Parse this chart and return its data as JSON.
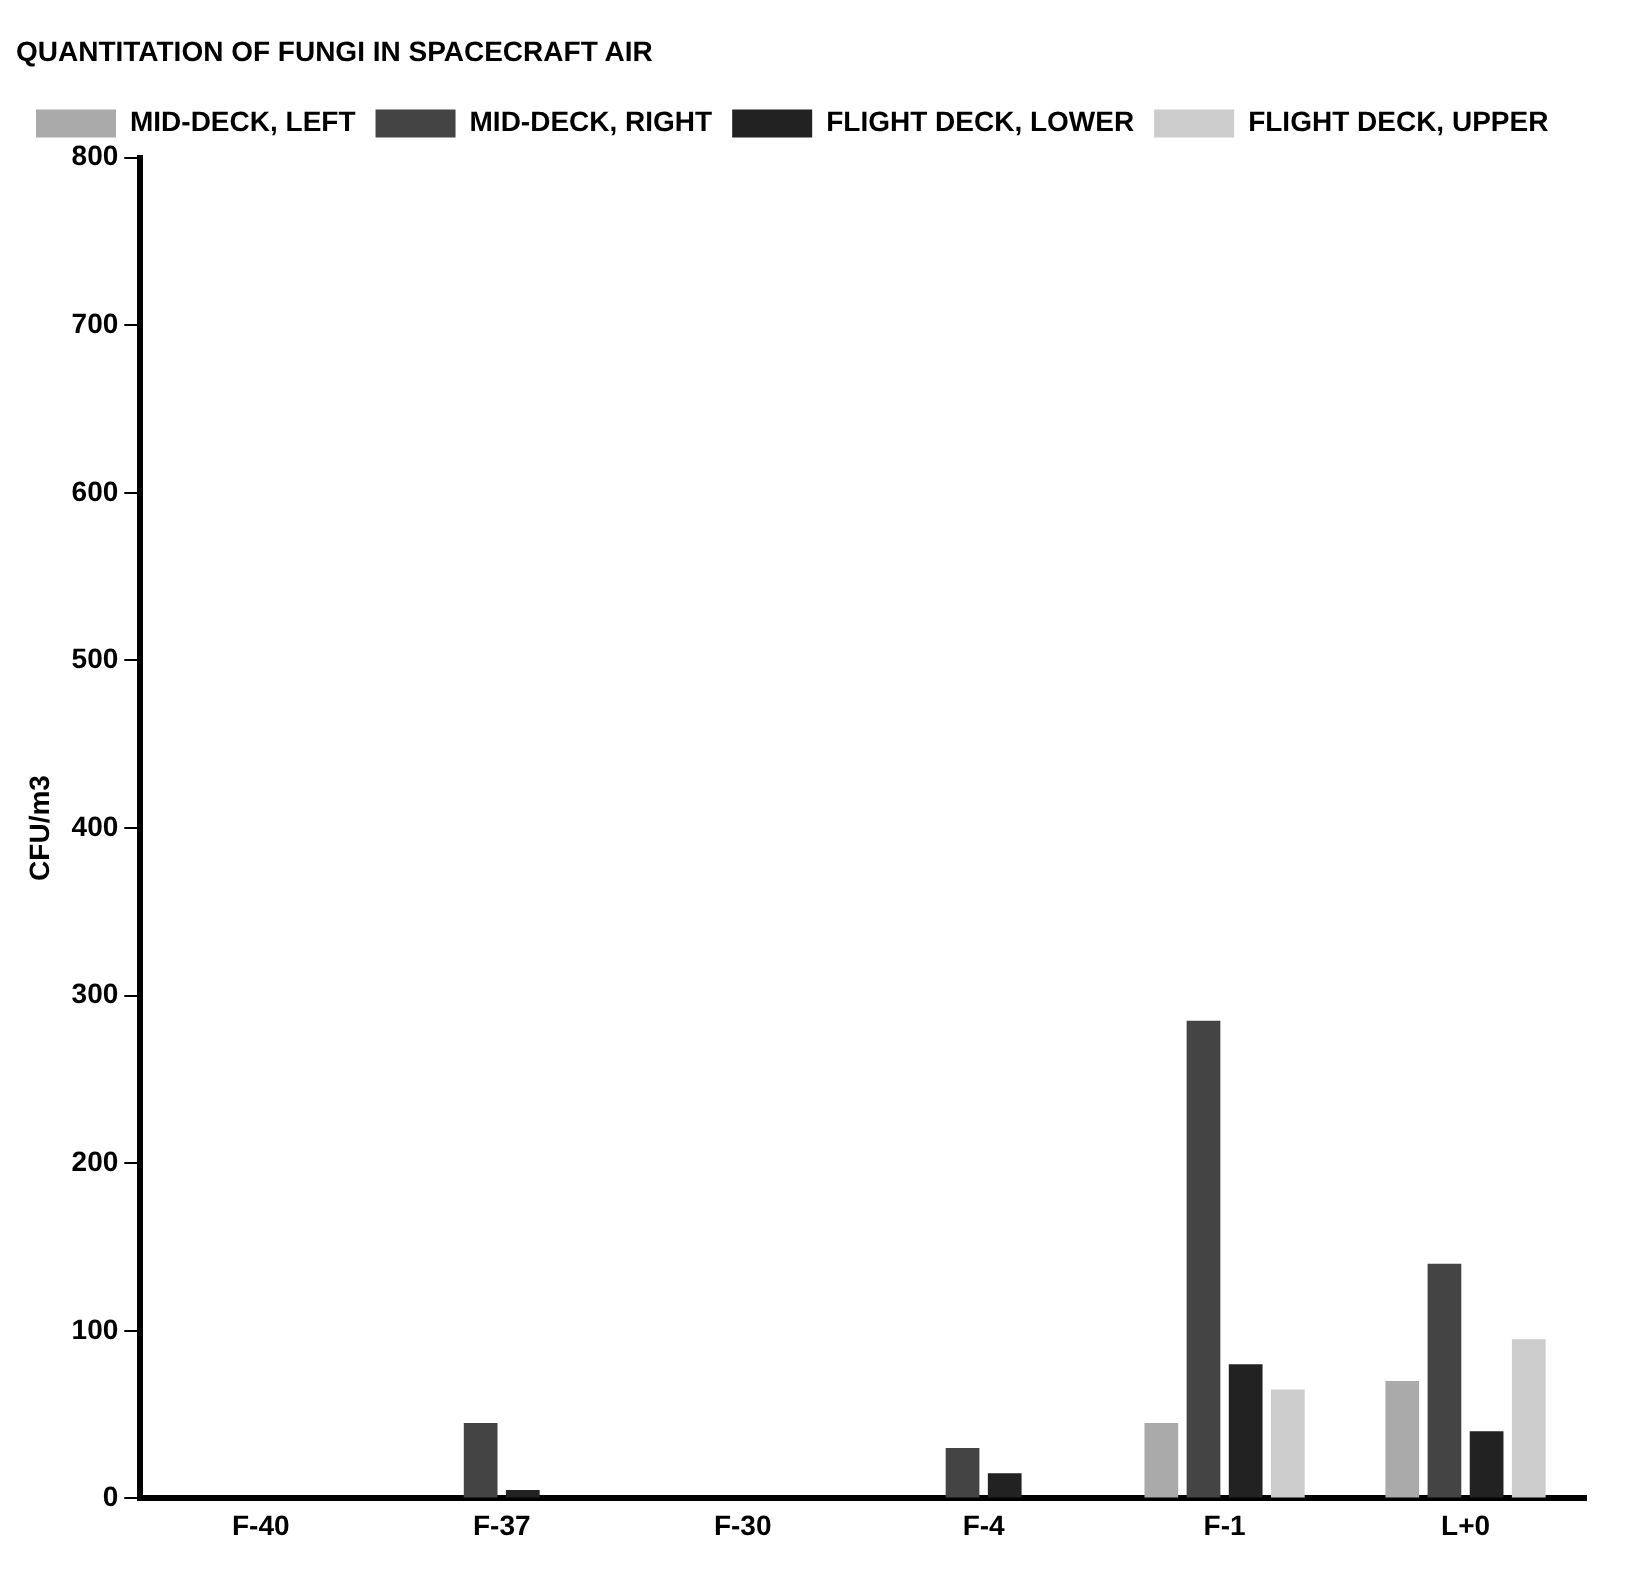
{
  "chart_data": {
    "type": "bar",
    "title": "QUANTITATION OF FUNGI IN SPACECRAFT AIR",
    "ylabel": "CFU/m3",
    "categories": [
      "F-40",
      "F-37",
      "F-30",
      "F-4",
      "F-1",
      "L+0"
    ],
    "series": [
      {
        "name": "MID-DECK, LEFT",
        "color": "#aaaaaa",
        "values": [
          0,
          0,
          null,
          0,
          45,
          70
        ]
      },
      {
        "name": "MID-DECK, RIGHT",
        "color": "#444444",
        "values": [
          0,
          45,
          null,
          30,
          285,
          140
        ]
      },
      {
        "name": "FLIGHT DECK, LOWER",
        "color": "#222222",
        "values": [
          0,
          5,
          null,
          15,
          80,
          40
        ]
      },
      {
        "name": "FLIGHT DECK, UPPER",
        "color": "#cccccc",
        "values": [
          0,
          0,
          null,
          0,
          65,
          95
        ]
      }
    ],
    "ylim": [
      0,
      800
    ],
    "yticks": [
      0,
      100,
      200,
      300,
      400,
      500,
      600,
      700,
      800
    ],
    "grid": false,
    "legend": "top left"
  }
}
